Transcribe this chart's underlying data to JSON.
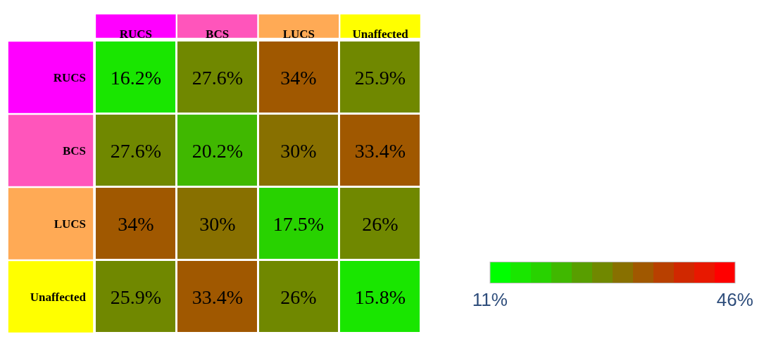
{
  "chart_data": {
    "type": "heatmap",
    "categories": [
      "RUCS",
      "BCS",
      "LUCS",
      "Unaffected"
    ],
    "y_categories": [
      "RUCS",
      "BCS",
      "LUCS",
      "Unaffected"
    ],
    "cells": [
      [
        16.2,
        27.6,
        34,
        25.9
      ],
      [
        27.6,
        20.2,
        30,
        33.4
      ],
      [
        34,
        30,
        17.5,
        26
      ],
      [
        25.9,
        33.4,
        26,
        15.8
      ]
    ],
    "cell_labels": [
      [
        "16.2%",
        "27.6%",
        "34%",
        "25.9%"
      ],
      [
        "27.6%",
        "20.2%",
        "30%",
        "33.4%"
      ],
      [
        "34%",
        "30%",
        "17.5%",
        "26%"
      ],
      [
        "25.9%",
        "33.4%",
        "26%",
        "15.8%"
      ]
    ],
    "clim": [
      11,
      46
    ],
    "cticks": [
      {
        "value": 11,
        "label": "11%"
      },
      {
        "value": 46,
        "label": "46%"
      }
    ]
  }
}
